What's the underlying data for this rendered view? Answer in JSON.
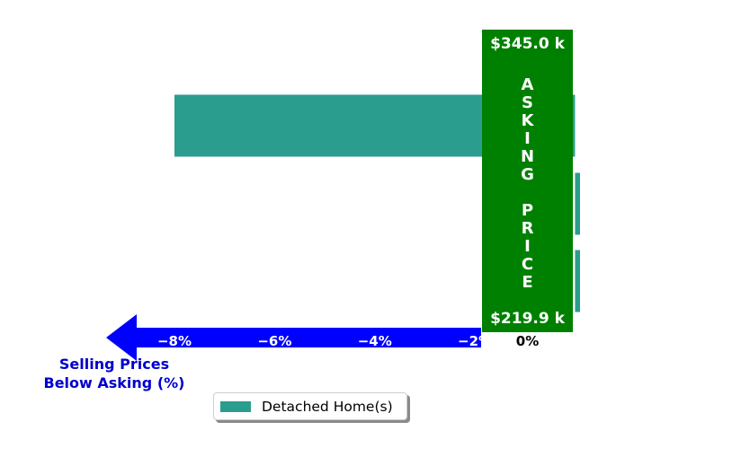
{
  "chart_data": {
    "type": "bar",
    "orientation": "horizontal",
    "series": [
      {
        "name": "Detached Home(s)",
        "values": [
          -8.0,
          0.1,
          0.1
        ],
        "color": "#2a9d8f"
      }
    ],
    "xlim": [
      -8.0,
      0.1
    ],
    "x_ticks": [
      "−8%",
      "−6%",
      "−4%",
      "−2%",
      "0%"
    ],
    "x_tick_values": [
      -8,
      -6,
      -4,
      -2,
      0
    ],
    "xlabel": "Selling Prices\nBelow Asking (%)",
    "xlabel_lines": [
      "Selling Prices",
      "Below Asking (%)"
    ],
    "asking_price_band": {
      "top_label": "$345.0 k",
      "bottom_label": "$219.9 k",
      "title_letters": [
        "A",
        "S",
        "K",
        "I",
        "N",
        "G",
        "",
        "P",
        "R",
        "I",
        "C",
        "E"
      ],
      "color": "#008000"
    },
    "arrow_color": "#0000ff",
    "xlabel_color": "#0000cd",
    "legend": {
      "position": "bottom-center"
    },
    "grid": false
  }
}
